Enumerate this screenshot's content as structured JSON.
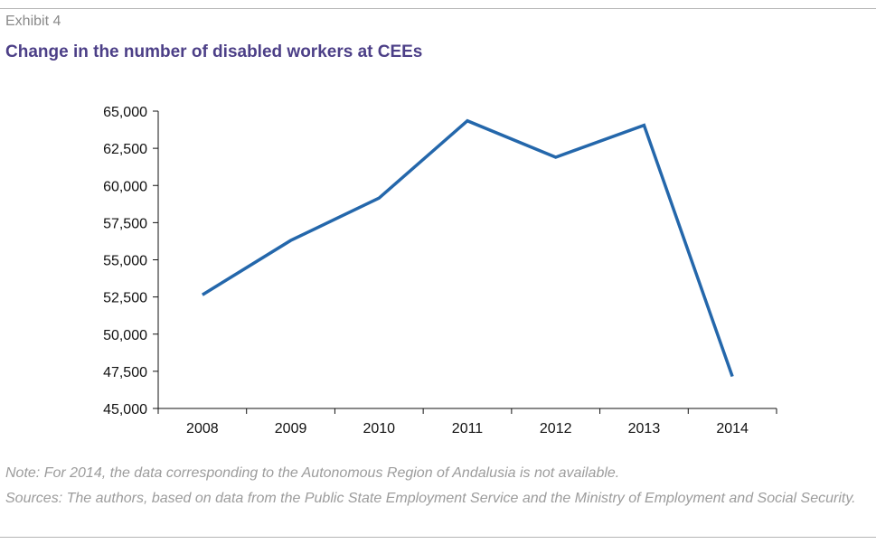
{
  "header": {
    "exhibit_label": "Exhibit 4",
    "title": "Change in the number of disabled workers at CEEs"
  },
  "footer": {
    "note": "Note: For 2014, the data corresponding to the Autonomous Region of Andalusia is not available.",
    "sources": "Sources: The authors, based on data from the Public State Employment Service and the Ministry of Employment and Social Security."
  },
  "colors": {
    "title": "#4c3f87",
    "series_line": "#2467ab",
    "axis": "#111111",
    "muted_text": "#9c9c9c"
  },
  "chart_data": {
    "type": "line",
    "title": "Change in the number of disabled workers at CEEs",
    "xlabel": "",
    "ylabel": "",
    "categories": [
      "2008",
      "2009",
      "2010",
      "2011",
      "2012",
      "2013",
      "2014"
    ],
    "series": [
      {
        "values": [
          52650,
          56300,
          59150,
          64350,
          61900,
          64050,
          47150
        ]
      }
    ],
    "ylim": [
      45000,
      65000
    ],
    "yticks": [
      45000,
      47500,
      50000,
      52500,
      55000,
      57500,
      60000,
      62500,
      65000
    ],
    "ytick_labels": [
      "45,000",
      "47,500",
      "50,000",
      "52,500",
      "55,000",
      "57,500",
      "60,000",
      "62,500",
      "65,000"
    ],
    "grid": false,
    "legend": "none"
  }
}
